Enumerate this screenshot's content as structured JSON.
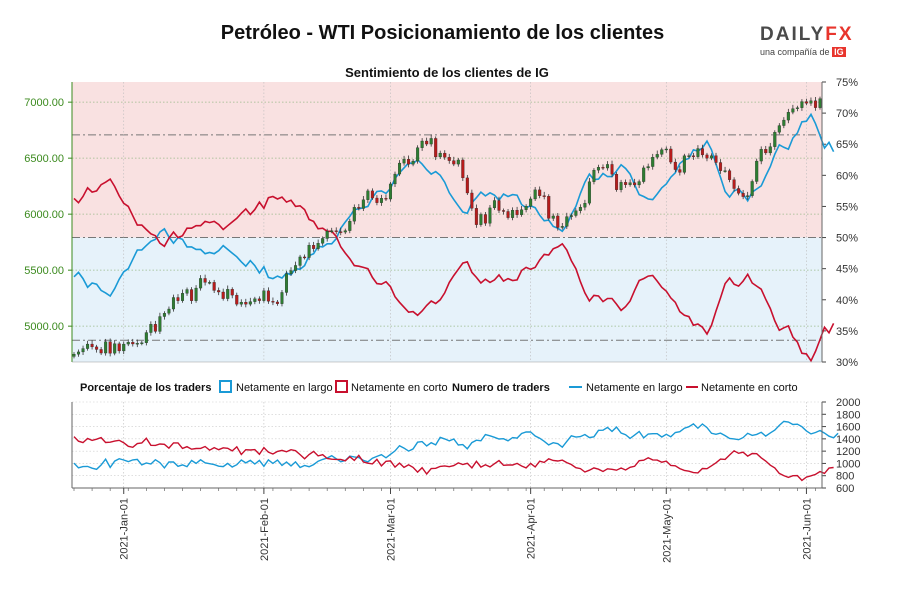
{
  "header": {
    "title": "Petróleo - WTI Posicionamiento de los clientes",
    "subtitle": "Sentimiento de los clientes de IG",
    "logo_text": "DAILYFX",
    "logo_sub": "una compañía de",
    "logo_badge": "IG"
  },
  "colors": {
    "long": "#1a9ad6",
    "short": "#c8102e",
    "long_fill": "#e6f2fa",
    "short_fill": "#f9e1e1",
    "price_axis": "#3b8a1e",
    "candle_up": "#2e7d32",
    "candle_down": "#b71c1c"
  },
  "chart_data": [
    {
      "type": "candlestick",
      "title": "Sentimiento de los clientes de IG",
      "price_axis": {
        "side": "left",
        "ticks": [
          "5000.00",
          "5500.00",
          "6000.00",
          "6500.00",
          "7000.00"
        ],
        "ylim": [
          4680,
          7180
        ]
      },
      "sentiment_axis": {
        "side": "right",
        "ticks": [
          "30%",
          "35%",
          "40%",
          "45%",
          "50%",
          "55%",
          "60%",
          "65%",
          "70%",
          "75%"
        ],
        "ylim": [
          30,
          75
        ]
      },
      "reference_lines": [
        33.5,
        50,
        66.5
      ],
      "price_series": [
        4750,
        4770,
        4800,
        4840,
        4815,
        4792,
        4760,
        4860,
        4758,
        4843,
        4779,
        4840,
        4856,
        4841,
        4847,
        4851,
        4943,
        5017,
        4953,
        5086,
        5115,
        5153,
        5256,
        5227,
        5293,
        5327,
        5227,
        5340,
        5426,
        5391,
        5391,
        5319,
        5305,
        5246,
        5329,
        5277,
        5196,
        5214,
        5196,
        5219,
        5244,
        5228,
        5316,
        5222,
        5216,
        5200,
        5301,
        5468,
        5496,
        5542,
        5618,
        5613,
        5722,
        5692,
        5740,
        5783,
        5848,
        5852,
        5844,
        5840,
        5853,
        5937,
        6061,
        6051,
        6128,
        6208,
        6144,
        6102,
        6142,
        6135,
        6270,
        6358,
        6456,
        6490,
        6446,
        6474,
        6593,
        6653,
        6626,
        6676,
        6511,
        6545,
        6508,
        6478,
        6447,
        6484,
        6324,
        6189,
        6052,
        5906,
        5997,
        5918,
        6056,
        6122,
        6033,
        6024,
        5969,
        6035,
        5995,
        6039,
        6071,
        6136,
        6217,
        6165,
        6160,
        5962,
        5984,
        5881,
        5891,
        5978,
        5988,
        6030,
        6062,
        6098,
        6289,
        6393,
        6419,
        6412,
        6444,
        6357,
        6218,
        6284,
        6263,
        6281,
        6261,
        6291,
        6413,
        6425,
        6508,
        6534,
        6576,
        6582,
        6465,
        6398,
        6373,
        6521,
        6521,
        6513,
        6586,
        6529,
        6500,
        6521,
        6461,
        6388,
        6388,
        6308,
        6229,
        6186,
        6157,
        6165,
        6292,
        6474,
        6579,
        6547,
        6602,
        6731,
        6791,
        6840,
        6910,
        6942,
        6950,
        7005,
        6990,
        7012,
        6951,
        7031
      ],
      "long_pct": [
        43.7,
        44.4,
        43.4,
        42.0,
        42.7,
        42.5,
        41.5,
        41.1,
        40.6,
        41.8,
        43.3,
        44.5,
        45.0,
        46.5,
        48.0,
        48.0,
        48.7,
        49.4,
        49.7,
        50.9,
        51.4,
        50.1,
        49.1,
        50.0,
        49.7,
        48.5,
        48.5,
        48.1,
        48.1,
        47.4,
        47.6,
        47.4,
        47.9,
        48.7,
        48.1,
        47.5,
        46.9,
        46.1,
        45.4,
        46.3,
        45.5,
        44.3,
        45.3,
        43.6,
        43.4,
        43.8,
        43.5,
        44.3,
        44.0,
        45.0,
        44.9,
        45.5,
        47.1,
        47.4,
        48.6,
        48.5,
        49.0,
        49.0,
        49.8,
        51.5,
        52.5,
        53.4,
        54.5,
        54.6,
        54.8,
        55.0,
        56.4,
        57.4,
        57.5,
        57.1,
        57.9,
        59.5,
        60.4,
        61.2,
        62.0,
        61.9,
        62.5,
        61.8,
        60.9,
        60.2,
        60.6,
        60.0,
        58.9,
        57.2,
        56.1,
        55.1,
        54.1,
        53.9,
        55.6,
        56.4,
        57.3,
        56.7,
        57.2,
        56.8,
        56.0,
        57.0,
        56.6,
        56.9,
        56.8,
        55.3,
        54.8,
        55.1,
        54.8,
        53.6,
        52.7,
        52.8,
        51.8,
        51.5,
        51.0,
        52.0,
        53.7,
        55.0,
        57.1,
        58.9,
        60.2,
        59.3,
        59.4,
        60.3,
        59.8,
        59.8,
        60.7,
        61.7,
        61.1,
        60.2,
        58.5,
        56.9,
        56.6,
        56.2,
        56.1,
        57.0,
        58.0,
        58.6,
        59.7,
        60.4,
        61.9,
        62.5,
        62.7,
        64.1,
        63.9,
        64.4,
        65.5,
        64.1,
        61.8,
        59.7,
        57.4,
        56.5,
        57.5,
        57.8,
        57.0,
        55.9,
        57.3,
        57.8,
        58.3,
        59.9,
        61.4,
        63.4,
        64.9,
        64.5,
        64.2,
        66.0,
        66.8,
        68.6,
        68.7,
        69.8,
        68.3,
        66.4,
        64.4,
        65.3,
        63.8
      ],
      "short_pct": [
        56.3,
        55.6,
        56.6,
        58.0,
        57.3,
        57.5,
        58.5,
        58.9,
        59.4,
        58.2,
        56.7,
        55.5,
        55.0,
        53.5,
        52.0,
        52.0,
        51.3,
        50.6,
        50.3,
        49.1,
        48.6,
        49.9,
        50.9,
        50.0,
        50.3,
        51.5,
        51.5,
        51.9,
        51.9,
        52.6,
        52.4,
        52.6,
        52.1,
        51.3,
        51.9,
        52.5,
        53.1,
        53.9,
        54.6,
        53.7,
        54.5,
        55.7,
        54.7,
        56.4,
        56.6,
        56.2,
        56.5,
        55.7,
        56.0,
        55.0,
        55.1,
        54.5,
        52.9,
        52.6,
        51.4,
        51.5,
        51.0,
        51.0,
        50.2,
        48.5,
        47.5,
        46.6,
        45.5,
        45.4,
        45.2,
        45.0,
        43.6,
        42.6,
        42.5,
        42.9,
        42.1,
        40.5,
        39.6,
        38.8,
        38.0,
        38.1,
        37.5,
        38.2,
        39.1,
        39.8,
        39.4,
        40.0,
        41.1,
        42.8,
        43.9,
        44.9,
        45.9,
        46.1,
        44.4,
        43.6,
        42.7,
        43.3,
        42.8,
        43.2,
        44.0,
        43.0,
        43.4,
        43.1,
        43.2,
        44.7,
        45.2,
        44.9,
        45.2,
        46.4,
        47.3,
        47.2,
        48.2,
        48.5,
        49.0,
        48.0,
        46.3,
        45.0,
        42.9,
        41.1,
        39.8,
        40.7,
        40.6,
        39.7,
        40.2,
        40.2,
        39.3,
        38.3,
        38.9,
        39.8,
        41.5,
        43.1,
        43.4,
        43.8,
        43.9,
        43.0,
        42.0,
        41.4,
        40.3,
        39.6,
        38.1,
        37.5,
        37.3,
        35.9,
        36.1,
        35.6,
        34.5,
        35.9,
        38.2,
        40.3,
        42.6,
        43.5,
        42.5,
        42.2,
        43.0,
        44.1,
        42.7,
        42.2,
        41.7,
        40.1,
        38.6,
        36.6,
        35.1,
        35.5,
        35.8,
        34.0,
        33.2,
        31.4,
        31.3,
        30.2,
        31.7,
        33.6,
        35.6,
        34.7,
        36.2
      ],
      "x_ticks": [
        "2021-Jan-01",
        "2021-Feb-01",
        "2021-Mar-01",
        "2021-Apr-01",
        "2021-May-01",
        "2021-Jun-01"
      ]
    },
    {
      "type": "line",
      "left_group_label": "Porcentaje de los traders",
      "left_legend": [
        "Netamente en largo",
        "Netamente en corto"
      ],
      "right_group_label": "Numero de traders",
      "right_legend": [
        "Netamente en largo",
        "Netamente en corto"
      ],
      "y_ticks": [
        "600",
        "800",
        "1000",
        "1200",
        "1400",
        "1600",
        "1800",
        "2000"
      ],
      "ylim": [
        600,
        2000
      ],
      "long_traders": [
        1005,
        929,
        949,
        951,
        923,
        905,
        974,
        1069,
        936,
        1038,
        1077,
        1056,
        1030,
        1058,
        1065,
        976,
        1007,
        990,
        1060,
        1013,
        927,
        1024,
        1024,
        953,
        976,
        947,
        1047,
        1000,
        1059,
        1011,
        996,
        981,
        955,
        948,
        1001,
        942,
        979,
        1056,
        1008,
        1049,
        990,
        1050,
        953,
        1057,
        1001,
        1054,
        968,
        1024,
        960,
        1025,
        934,
        966,
        946,
        981,
        1037,
        1065,
        1089,
        1126,
        1077,
        1028,
        1047,
        1120,
        1106,
        1097,
        1049,
        1026,
        1085,
        1115,
        1142,
        1091,
        1149,
        1204,
        1288,
        1249,
        1201,
        1236,
        1346,
        1356,
        1284,
        1337,
        1301,
        1423,
        1399,
        1367,
        1397,
        1300,
        1306,
        1238,
        1339,
        1378,
        1369,
        1469,
        1450,
        1426,
        1398,
        1402,
        1368,
        1421,
        1412,
        1487,
        1511,
        1513,
        1446,
        1411,
        1360,
        1302,
        1338,
        1321,
        1264,
        1358,
        1449,
        1429,
        1436,
        1471,
        1420,
        1434,
        1539,
        1541,
        1587,
        1522,
        1592,
        1496,
        1468,
        1408,
        1461,
        1519,
        1416,
        1479,
        1484,
        1484,
        1430,
        1474,
        1433,
        1503,
        1517,
        1574,
        1598,
        1644,
        1574,
        1642,
        1583,
        1490,
        1474,
        1493,
        1453,
        1406,
        1400,
        1387,
        1420,
        1490,
        1457,
        1473,
        1507,
        1445,
        1497,
        1542,
        1619,
        1685,
        1674,
        1634,
        1638,
        1598,
        1530,
        1480,
        1503,
        1536,
        1494,
        1444,
        1418,
        1490
      ],
      "short_traders": [
        1436,
        1362,
        1339,
        1406,
        1375,
        1395,
        1421,
        1340,
        1346,
        1364,
        1376,
        1337,
        1279,
        1262,
        1322,
        1332,
        1409,
        1295,
        1294,
        1316,
        1312,
        1249,
        1335,
        1334,
        1245,
        1272,
        1231,
        1243,
        1245,
        1275,
        1215,
        1258,
        1223,
        1255,
        1247,
        1204,
        1270,
        1145,
        1224,
        1218,
        1225,
        1148,
        1257,
        1182,
        1153,
        1196,
        1212,
        1189,
        1224,
        1207,
        1143,
        1075,
        1146,
        1196,
        1123,
        1142,
        1080,
        1069,
        1066,
        1065,
        1043,
        1110,
        1050,
        1131,
        1024,
        1003,
        992,
        1065,
        960,
        1035,
        1041,
        940,
        1005,
        935,
        977,
        936,
        859,
        931,
        828,
        915,
        921,
        951,
        960,
        947,
        964,
        1009,
        983,
        1002,
        927,
        1035,
        940,
        978,
        943,
        996,
        1046,
        969,
        975,
        974,
        1001,
        958,
        928,
        1000,
        943,
        1036,
        1017,
        1075,
        1047,
        1040,
        1054,
        1013,
        983,
        931,
        916,
        860,
        889,
        927,
        906,
        868,
        912,
        905,
        889,
        926,
        893,
        937,
        954,
        1045,
        1053,
        1092,
        1057,
        1054,
        1020,
        1038,
        966,
        961,
        915,
        886,
        873,
        851,
        845,
        918,
        914,
        962,
        1011,
        1071,
        1066,
        1138,
        1205,
        1165,
        1183,
        1119,
        1162,
        1159,
        1092,
        1039,
        971,
        927,
        838,
        802,
        772,
        801,
        802,
        723,
        778,
        799,
        822,
        868,
        838,
        926,
        934
      ]
    }
  ]
}
